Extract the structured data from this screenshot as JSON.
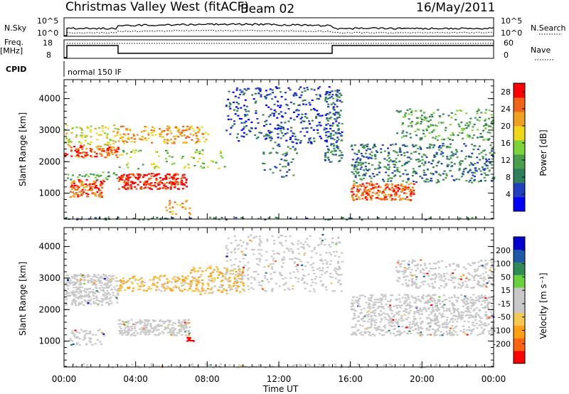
{
  "header": {
    "station": "Christmas Valley West (fitACF)",
    "beam": "Beam 02",
    "date": "16/May/2011"
  },
  "top_panels": {
    "nsky_label": "N.Sky",
    "nsky_ticks": [
      "10^5",
      "10^0"
    ],
    "nsearch_label": "N.Search",
    "freq_label_1": "Freq.",
    "freq_label_2": "[MHz]",
    "freq_ticks": [
      "18",
      "8"
    ],
    "nave_label": "Nave",
    "nave_ticks": [
      "60",
      "0"
    ],
    "cpid_label": "CPID",
    "cpid_text": "normal 150 IF"
  },
  "colors": {
    "power_scale": [
      "#0000ff",
      "#1f3fbf",
      "#2e7f5a",
      "#4aa04a",
      "#7dd33a",
      "#f0d818",
      "#f0a020",
      "#f06418",
      "#ff0000"
    ],
    "velocity_scale": [
      "#ff0000",
      "#ff6410",
      "#ffa014",
      "#f5c850",
      "#c8c8c8",
      "#c8c8c8",
      "#6ad23c",
      "#2e8b57",
      "#1e5aa8",
      "#0000d0"
    ]
  },
  "chart_data": [
    {
      "type": "heatmap",
      "name": "power",
      "ylabel": "Slant Range [km]",
      "xlabel": "Time UT",
      "xlim_hours": [
        0,
        24
      ],
      "ylim": [
        180,
        4600
      ],
      "x_tick_labels": [
        "00:00",
        "04:00",
        "08:00",
        "12:00",
        "16:00",
        "20:00",
        "00:00"
      ],
      "y_tick_values": [
        1000,
        2000,
        3000,
        4000
      ],
      "colorbar": {
        "label": "Power [dB]",
        "ticks": [
          "4",
          "8",
          "12",
          "16",
          "20",
          "24",
          "28"
        ],
        "range": [
          0,
          30
        ]
      },
      "features": [
        {
          "t": [
            0.0,
            3.0
          ],
          "r": [
            2200,
            2500
          ],
          "value_db": 25
        },
        {
          "t": [
            0.3,
            2.0
          ],
          "r": [
            950,
            1400
          ],
          "value_db": 24
        },
        {
          "t": [
            3.0,
            6.5
          ],
          "r": [
            1200,
            1600
          ],
          "value_db": 28
        },
        {
          "t": [
            3.0,
            8.0
          ],
          "r": [
            2600,
            3100
          ],
          "value_db": 20
        },
        {
          "t": [
            16.0,
            19.0
          ],
          "r": [
            850,
            1300
          ],
          "value_db": 22
        },
        {
          "t": [
            16.0,
            24.0
          ],
          "r": [
            1400,
            2500
          ],
          "value_db": 10
        }
      ]
    },
    {
      "type": "heatmap",
      "name": "velocity",
      "ylabel": "Slant Range [km]",
      "xlabel": "Time UT",
      "xlim_hours": [
        0,
        24
      ],
      "ylim": [
        180,
        4600
      ],
      "x_tick_labels": [
        "00:00",
        "04:00",
        "08:00",
        "12:00",
        "16:00",
        "20:00",
        "00:00"
      ],
      "y_tick_values": [
        1000,
        2000,
        3000,
        4000
      ],
      "colorbar": {
        "label": "Velocity [m s⁻¹]",
        "ticks": [
          "200",
          "100",
          "50",
          "15",
          "-15",
          "-50",
          "-100",
          "-200"
        ],
        "range": [
          -250,
          250
        ]
      },
      "features": [
        {
          "t": [
            0.0,
            3.0
          ],
          "r": [
            2200,
            3100
          ],
          "value_ms": 0
        },
        {
          "t": [
            3.0,
            8.0
          ],
          "r": [
            1200,
            1700
          ],
          "value_ms": 0
        },
        {
          "t": [
            8.0,
            10.0
          ],
          "r": [
            2600,
            3300
          ],
          "value_ms": -60
        },
        {
          "t": [
            16.0,
            24.0
          ],
          "r": [
            1200,
            3300
          ],
          "value_ms": 0
        }
      ]
    }
  ]
}
